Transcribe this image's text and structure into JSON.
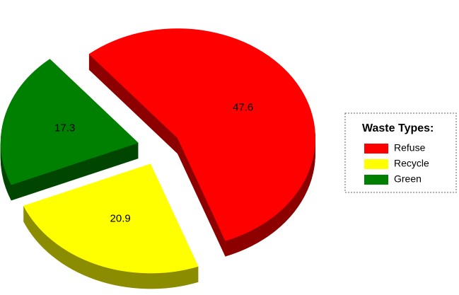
{
  "chart_data": {
    "type": "pie",
    "legend_title": "Waste Types:",
    "categories": [
      "Refuse",
      "Recycle",
      "Green"
    ],
    "values": [
      47.6,
      20.9,
      17.3
    ],
    "colors": [
      "#ff0000",
      "#ffff00",
      "#008000"
    ],
    "legend": "right"
  }
}
